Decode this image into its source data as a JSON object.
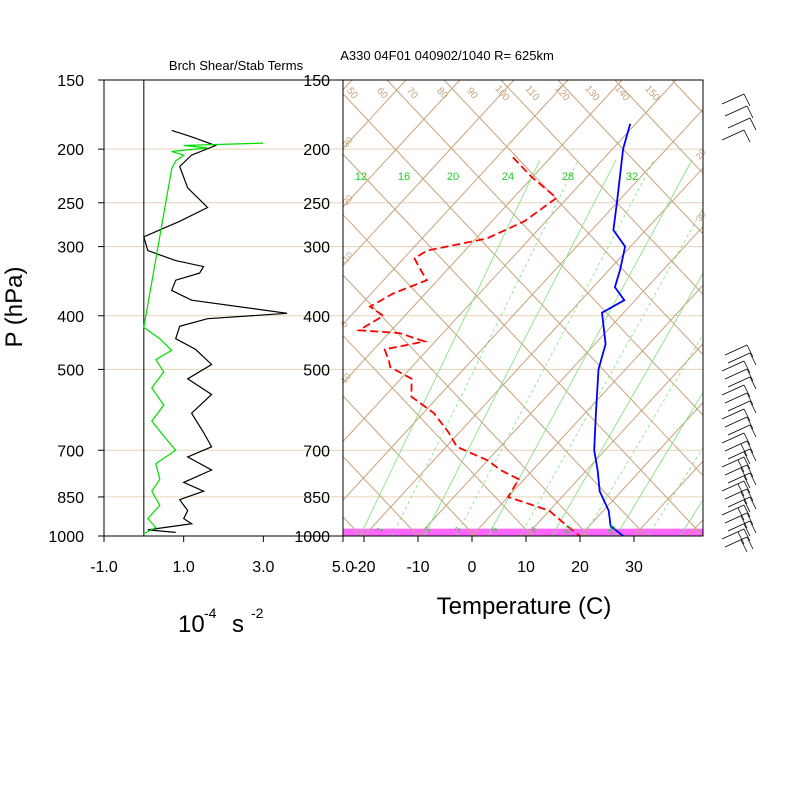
{
  "chart_data": [
    {
      "type": "line",
      "title": "Brch Shear/Stab Terms",
      "ylabel": "P (hPa)",
      "xlabel_base": "10",
      "xlabel_exp": "-4",
      "xlabel_unit": "s",
      "xlabel_unit_exp": "-2",
      "xlim": [
        -1.0,
        5.0
      ],
      "x_ticks": [
        "-1.0",
        "1.0",
        "3.0",
        "5.0"
      ],
      "y_ticks": [
        "150",
        "200",
        "250",
        "300",
        "400",
        "500",
        "700",
        "850",
        "1000"
      ],
      "y_tick_values": [
        150,
        200,
        250,
        300,
        400,
        500,
        700,
        850,
        1000
      ],
      "ylim": [
        150,
        1000
      ],
      "y_scale": "log",
      "grid": true,
      "series": [
        {
          "color": "#000000",
          "points": [
            [
              0.7,
              185
            ],
            [
              1.2,
              190
            ],
            [
              1.8,
              197
            ],
            [
              1.2,
              205
            ],
            [
              0.9,
              215
            ],
            [
              1.1,
              235
            ],
            [
              1.6,
              255
            ],
            [
              0.9,
              270
            ],
            [
              0.0,
              288
            ],
            [
              0.1,
              305
            ],
            [
              0.8,
              318
            ],
            [
              1.5,
              326
            ],
            [
              1.4,
              335
            ],
            [
              0.8,
              345
            ],
            [
              0.7,
              360
            ],
            [
              1.2,
              375
            ],
            [
              3.6,
              396
            ],
            [
              1.6,
              405
            ],
            [
              0.9,
              418
            ],
            [
              0.8,
              440
            ],
            [
              1.3,
              460
            ],
            [
              1.7,
              490
            ],
            [
              1.1,
              520
            ],
            [
              1.7,
              555
            ],
            [
              1.2,
              600
            ],
            [
              1.5,
              650
            ],
            [
              1.7,
              690
            ],
            [
              1.1,
              720
            ],
            [
              1.7,
              760
            ],
            [
              1.0,
              800
            ],
            [
              1.5,
              830
            ],
            [
              0.9,
              860
            ],
            [
              1.1,
              900
            ],
            [
              1.0,
              930
            ],
            [
              1.2,
              950
            ],
            [
              0.1,
              975
            ],
            [
              0.8,
              985
            ]
          ]
        },
        {
          "color": "#00dd00",
          "points": [
            [
              3.0,
              195
            ],
            [
              1.0,
              197
            ],
            [
              1.6,
              199
            ],
            [
              0.7,
              202
            ],
            [
              1.0,
              205
            ],
            [
              0.8,
              210
            ],
            [
              0.7,
              217
            ],
            [
              0.0,
              420
            ],
            [
              0.4,
              440
            ],
            [
              0.7,
              462
            ],
            [
              0.3,
              480
            ],
            [
              0.5,
              505
            ],
            [
              0.2,
              540
            ],
            [
              0.5,
              580
            ],
            [
              0.2,
              620
            ],
            [
              0.5,
              660
            ],
            [
              0.8,
              700
            ],
            [
              0.3,
              740
            ],
            [
              0.4,
              790
            ],
            [
              0.2,
              830
            ],
            [
              0.4,
              880
            ],
            [
              0.1,
              930
            ],
            [
              0.3,
              965
            ],
            [
              0.0,
              990
            ]
          ]
        }
      ]
    },
    {
      "type": "line",
      "title": "A330 04F01 040902/1040 R= 625km",
      "xlabel": "Temperature (C)",
      "xlim": [
        -25,
        42
      ],
      "x_ticks": [
        "-20",
        "-10",
        "0",
        "10",
        "20",
        "30"
      ],
      "x_tick_values": [
        -20,
        -10,
        0,
        10,
        20,
        30
      ],
      "y_ticks": [
        "150",
        "200",
        "250",
        "300",
        "400",
        "500",
        "700",
        "850",
        "1000"
      ],
      "ylim": [
        150,
        1000
      ],
      "y_scale": "log",
      "skew": true,
      "highlight_band": {
        "p_top": 970,
        "p_bottom": 1000,
        "color": "#ff66ff"
      },
      "isotherm_labels": [
        "-30",
        "-20",
        "-10",
        "0",
        "10",
        "20",
        "30"
      ],
      "dry_adiabat_labels": [
        "50",
        "60",
        "70",
        "80",
        "90",
        "100",
        "110",
        "120",
        "130",
        "140",
        "150"
      ],
      "mixing_ratio_labels": [
        "12",
        "16",
        "20",
        "24",
        "28",
        "32"
      ],
      "low_mixing_labels": [
        "1",
        "2",
        "3",
        "5",
        "8",
        "12",
        "20"
      ],
      "series": [
        {
          "name_role": "temperature",
          "color": "#0000ff",
          "points": [
            [
              -41,
              180
            ],
            [
              -38,
              200
            ],
            [
              -30,
              250
            ],
            [
              -26,
              280
            ],
            [
              -21,
              300
            ],
            [
              -18,
              330
            ],
            [
              -16,
              355
            ],
            [
              -12,
              375
            ],
            [
              -14,
              395
            ],
            [
              -8,
              450
            ],
            [
              -5,
              500
            ],
            [
              2,
              600
            ],
            [
              8,
              700
            ],
            [
              12,
              760
            ],
            [
              16,
              830
            ],
            [
              21,
              900
            ],
            [
              24,
              960
            ],
            [
              28,
              1000
            ]
          ]
        },
        {
          "name_role": "dewpoint",
          "color": "#ff0000",
          "dashed": true,
          "points": [
            [
              -57,
              207
            ],
            [
              -50,
              225
            ],
            [
              -42,
              245
            ],
            [
              -44,
              270
            ],
            [
              -48,
              290
            ],
            [
              -57,
              305
            ],
            [
              -58,
              315
            ],
            [
              -55,
              330
            ],
            [
              -52,
              345
            ],
            [
              -56,
              365
            ],
            [
              -58,
              385
            ],
            [
              -54,
              400
            ],
            [
              -56,
              425
            ],
            [
              -48,
              430
            ],
            [
              -42,
              445
            ],
            [
              -48,
              460
            ],
            [
              -45,
              485
            ],
            [
              -44,
              495
            ],
            [
              -38,
              520
            ],
            [
              -35,
              560
            ],
            [
              -28,
              600
            ],
            [
              -22,
              650
            ],
            [
              -18,
              690
            ],
            [
              -10,
              730
            ],
            [
              -6,
              760
            ],
            [
              -1,
              790
            ],
            [
              0,
              850
            ],
            [
              10,
              900
            ],
            [
              16,
              960
            ],
            [
              20,
              1000
            ]
          ]
        }
      ]
    }
  ]
}
